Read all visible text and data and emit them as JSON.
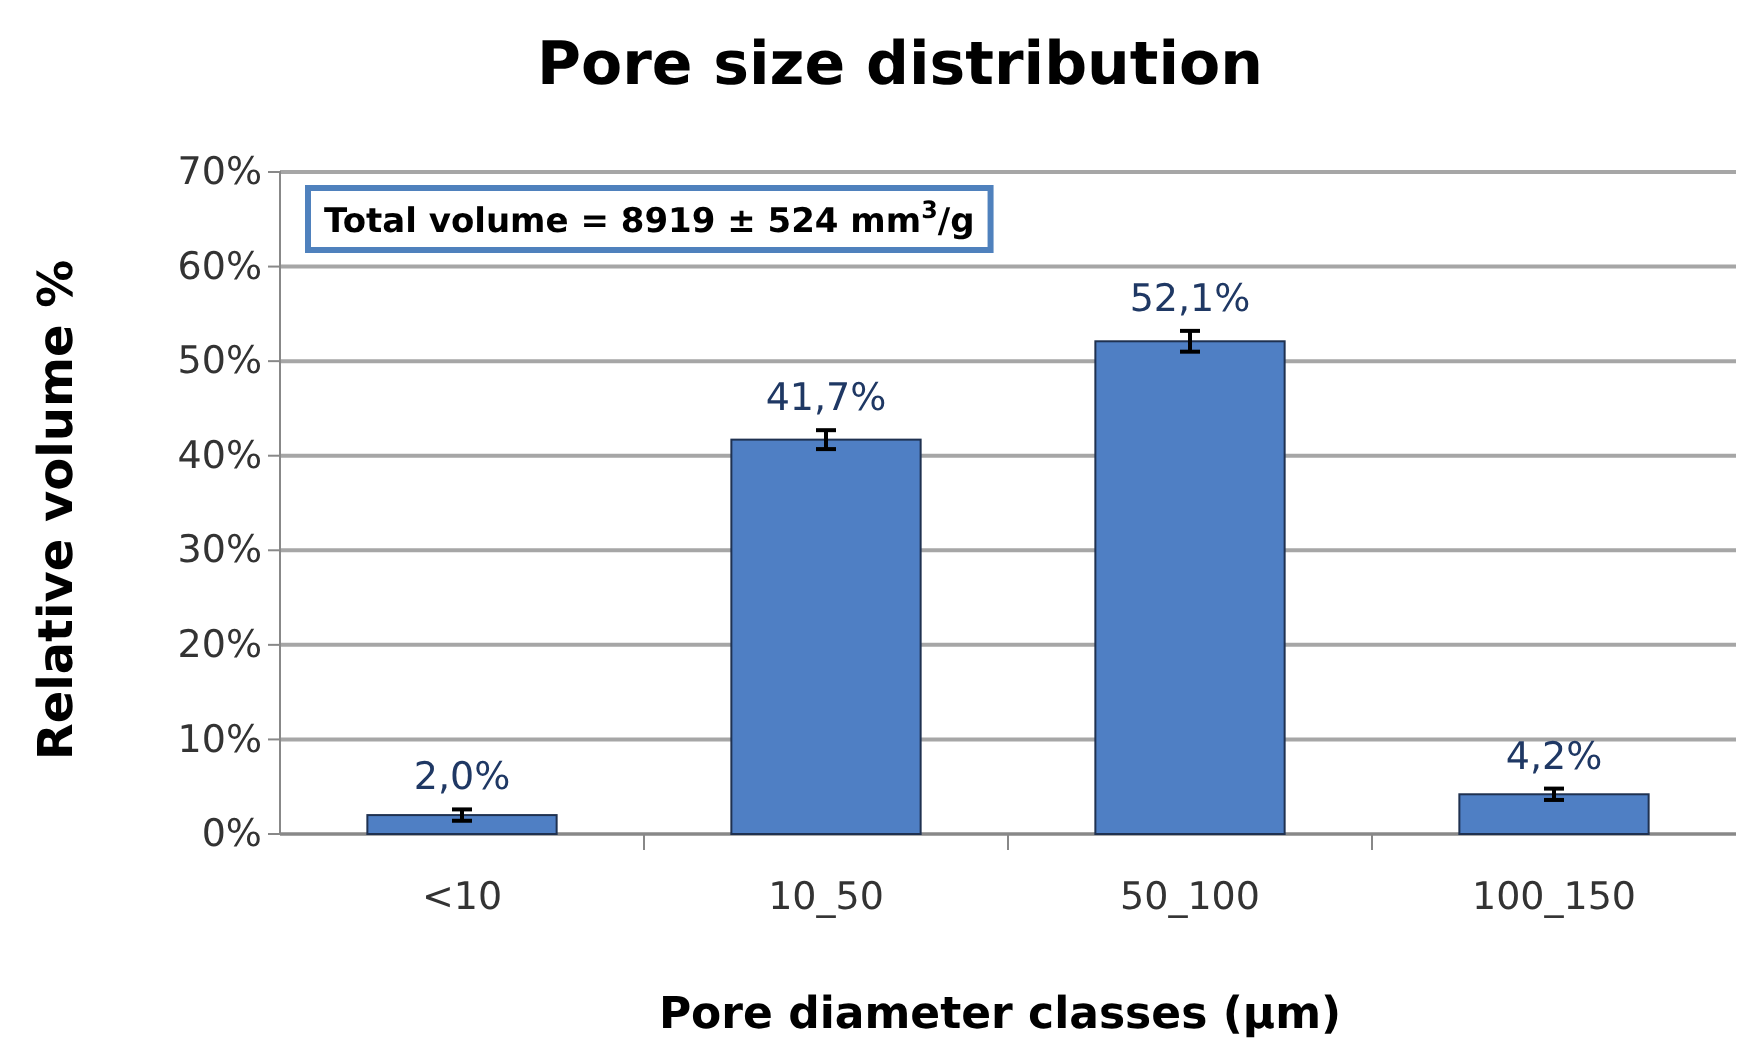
{
  "chart_data": {
    "type": "bar",
    "title": "Pore size distribution",
    "xlabel": "Pore diameter classes (µm)",
    "ylabel": "Relative volume %",
    "categories": [
      "<10",
      "10_50",
      "50_100",
      "100_150"
    ],
    "values": [
      2.0,
      41.7,
      52.1,
      4.2
    ],
    "errors": [
      0.6,
      1.0,
      1.1,
      0.6
    ],
    "value_labels": [
      "2,0%",
      "41,7%",
      "52,1%",
      "4,2%"
    ],
    "color": "#4f7fc4",
    "ylim": [
      0,
      70
    ],
    "yticks": [
      {
        "value": 0,
        "label": "0%"
      },
      {
        "value": 10,
        "label": "10%"
      },
      {
        "value": 20,
        "label": "20%"
      },
      {
        "value": 30,
        "label": "30%"
      },
      {
        "value": 40,
        "label": "40%"
      },
      {
        "value": 50,
        "label": "50%"
      },
      {
        "value": 60,
        "label": "60%"
      },
      {
        "value": 70,
        "label": "70%"
      }
    ],
    "grid": "y",
    "annotations": [
      "Total volume = 8919 ± 524 mm$^{3}$/g"
    ]
  }
}
